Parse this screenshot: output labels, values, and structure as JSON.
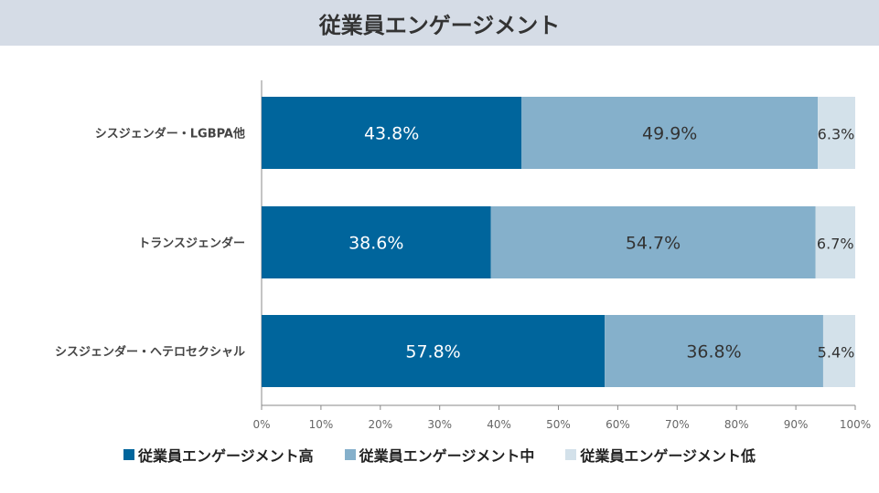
{
  "chart_data": {
    "type": "bar",
    "orientation": "horizontal",
    "stacked": true,
    "title": "従業員エンゲージメント",
    "categories": [
      "シスジェンダー・LGBPA他",
      "トランスジェンダー",
      "シスジェンダー・ヘテロセクシャル"
    ],
    "series": [
      {
        "name": "従業員エンゲージメント高",
        "values": [
          43.8,
          38.6,
          57.8
        ],
        "color": "#00659c",
        "labels": [
          "43.8%",
          "38.6%",
          "57.8%"
        ]
      },
      {
        "name": "従業員エンゲージメント中",
        "values": [
          49.9,
          54.7,
          36.8
        ],
        "color": "#85b0cb",
        "labels": [
          "49.9%",
          "54.7%",
          "36.8%"
        ]
      },
      {
        "name": "従業員エンゲージメント低",
        "values": [
          6.3,
          6.7,
          5.4
        ],
        "color": "#d3e1ea",
        "labels": [
          "6.3%",
          "6.7%",
          "5.4%"
        ]
      }
    ],
    "xlim": [
      0,
      100
    ],
    "xticks": [
      "0%",
      "10%",
      "20%",
      "30%",
      "40%",
      "50%",
      "60%",
      "70%",
      "80%",
      "90%",
      "100%"
    ],
    "grid": false,
    "legend": "bottom"
  }
}
